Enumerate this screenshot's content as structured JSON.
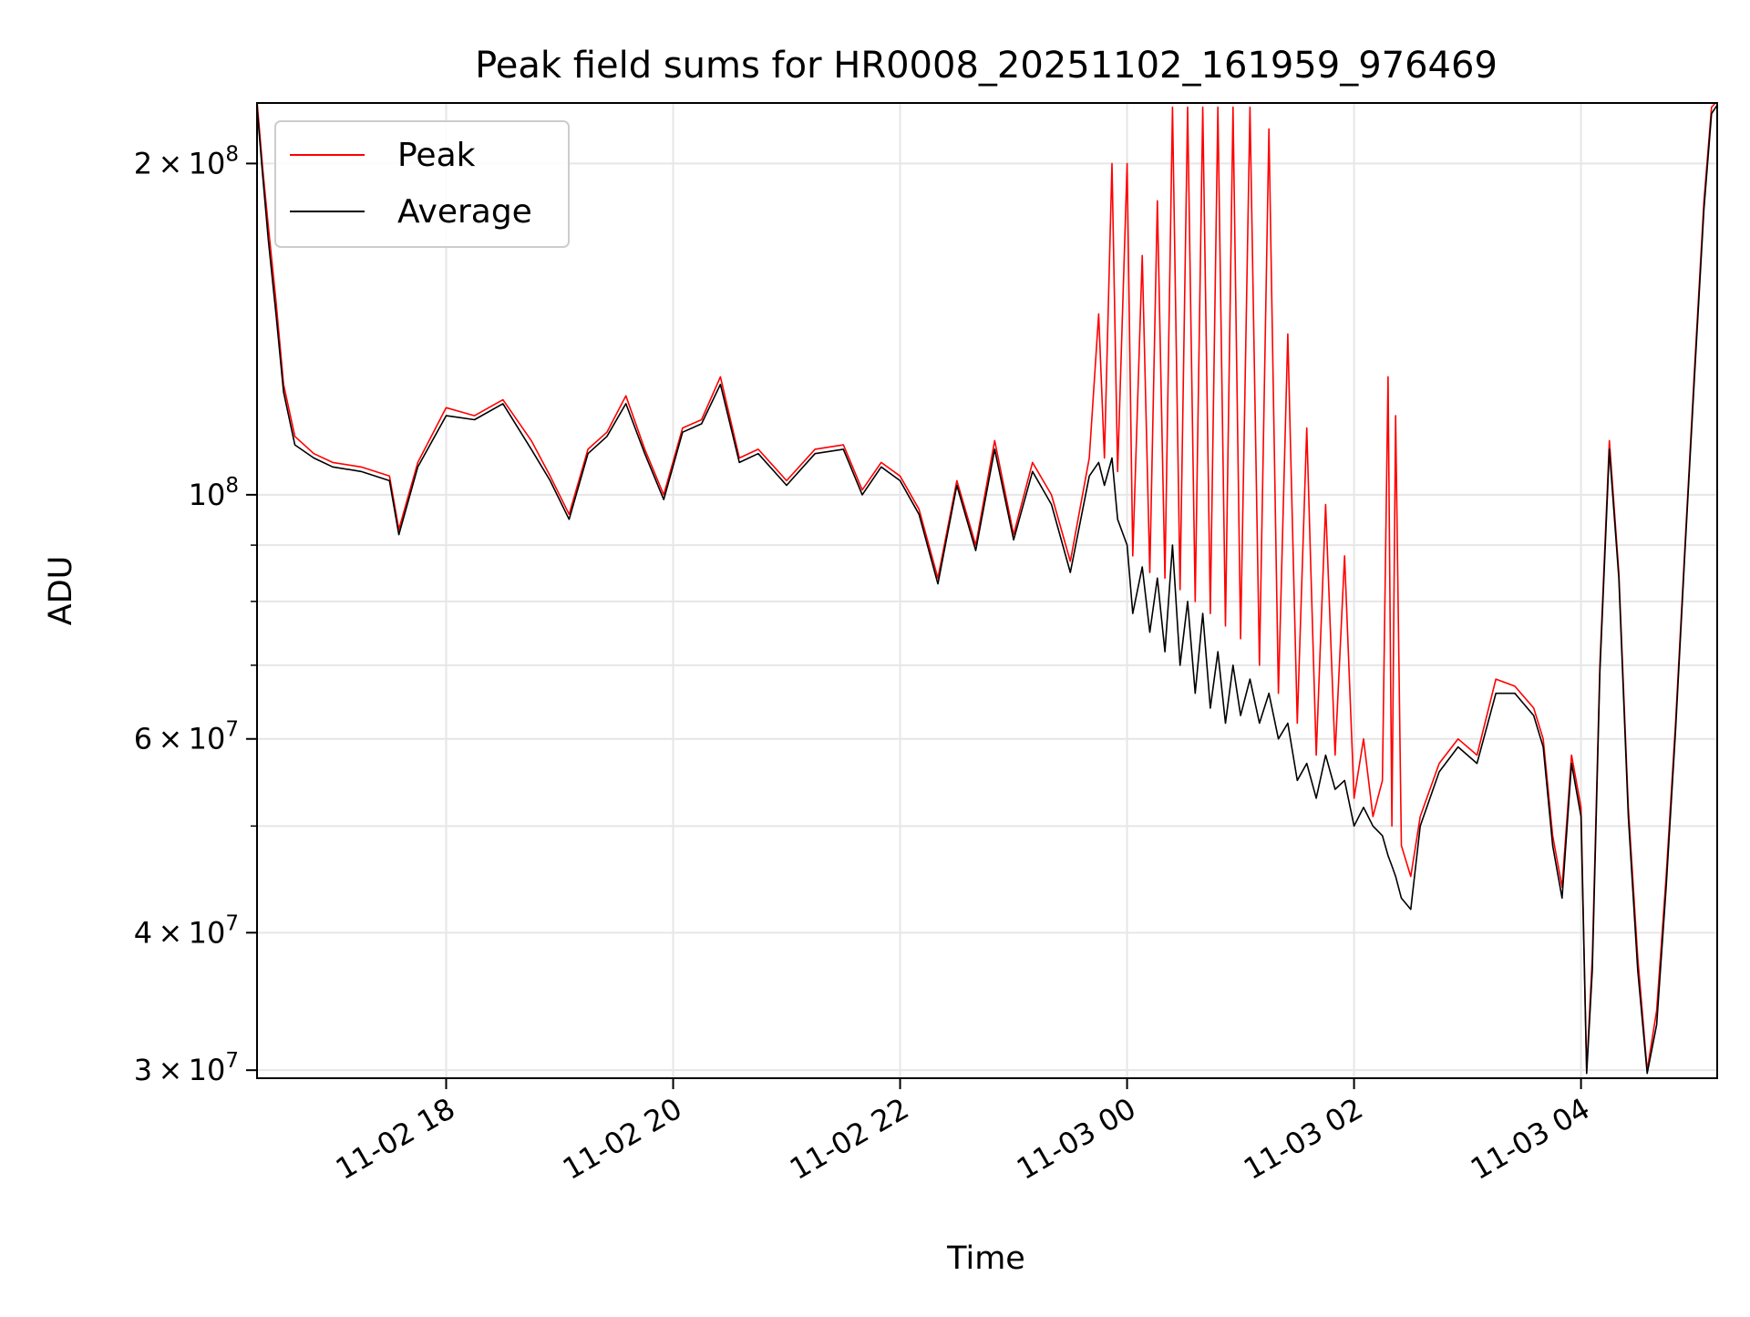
{
  "chart_data": {
    "type": "line",
    "title": "Peak field sums for HR0008_20251102_161959_976469",
    "xlabel": "Time",
    "ylabel": "ADU",
    "y_scale": "log",
    "grid": true,
    "legend_position": "top-left",
    "xlim": [
      "2025-11-02 16:20",
      "2025-11-03 05:12"
    ],
    "ylim": [
      29500000,
      227000000
    ],
    "x_tick_labels": [
      {
        "value": "2025-11-02 18:00",
        "label": "11-02 18"
      },
      {
        "value": "2025-11-02 20:00",
        "label": "11-02 20"
      },
      {
        "value": "2025-11-02 22:00",
        "label": "11-02 22"
      },
      {
        "value": "2025-11-03 00:00",
        "label": "11-03 00"
      },
      {
        "value": "2025-11-03 02:00",
        "label": "11-03 02"
      },
      {
        "value": "2025-11-03 04:00",
        "label": "11-03 04"
      }
    ],
    "y_tick_labels": [
      {
        "value": 30000000,
        "mantissa": "3",
        "exp": "7"
      },
      {
        "value": 40000000,
        "mantissa": "4",
        "exp": "7"
      },
      {
        "value": 60000000,
        "mantissa": "6",
        "exp": "7"
      },
      {
        "value": 100000000,
        "mantissa": "",
        "exp": "8"
      },
      {
        "value": 200000000,
        "mantissa": "2",
        "exp": "8"
      }
    ],
    "y_minor_ticks": [
      50000000,
      70000000,
      80000000,
      90000000
    ],
    "series": [
      {
        "name": "Peak",
        "color": "#ff0000",
        "points": [
          [
            "2025-11-02 16:20",
            228000000
          ],
          [
            "2025-11-02 16:23",
            198000000
          ],
          [
            "2025-11-02 16:26",
            175000000
          ],
          [
            "2025-11-02 16:30",
            150000000
          ],
          [
            "2025-11-02 16:34",
            126000000
          ],
          [
            "2025-11-02 16:40",
            113000000
          ],
          [
            "2025-11-02 16:50",
            109000000
          ],
          [
            "2025-11-02 17:00",
            107000000
          ],
          [
            "2025-11-02 17:15",
            106000000
          ],
          [
            "2025-11-02 17:30",
            104000000
          ],
          [
            "2025-11-02 17:35",
            93000000
          ],
          [
            "2025-11-02 17:45",
            107000000
          ],
          [
            "2025-11-02 18:00",
            120000000
          ],
          [
            "2025-11-02 18:15",
            118000000
          ],
          [
            "2025-11-02 18:30",
            122000000
          ],
          [
            "2025-11-02 18:45",
            112000000
          ],
          [
            "2025-11-02 18:55",
            104000000
          ],
          [
            "2025-11-02 19:05",
            96000000
          ],
          [
            "2025-11-02 19:15",
            110000000
          ],
          [
            "2025-11-02 19:25",
            114000000
          ],
          [
            "2025-11-02 19:35",
            123000000
          ],
          [
            "2025-11-02 19:45",
            110000000
          ],
          [
            "2025-11-02 19:55",
            100000000
          ],
          [
            "2025-11-02 20:05",
            115000000
          ],
          [
            "2025-11-02 20:15",
            117000000
          ],
          [
            "2025-11-02 20:25",
            128000000
          ],
          [
            "2025-11-02 20:35",
            108000000
          ],
          [
            "2025-11-02 20:45",
            110000000
          ],
          [
            "2025-11-02 21:00",
            103000000
          ],
          [
            "2025-11-02 21:15",
            110000000
          ],
          [
            "2025-11-02 21:30",
            111000000
          ],
          [
            "2025-11-02 21:40",
            101000000
          ],
          [
            "2025-11-02 21:50",
            107000000
          ],
          [
            "2025-11-02 22:00",
            104000000
          ],
          [
            "2025-11-02 22:10",
            97000000
          ],
          [
            "2025-11-02 22:20",
            84000000
          ],
          [
            "2025-11-02 22:30",
            103000000
          ],
          [
            "2025-11-02 22:40",
            90000000
          ],
          [
            "2025-11-02 22:50",
            112000000
          ],
          [
            "2025-11-02 23:00",
            92000000
          ],
          [
            "2025-11-02 23:10",
            107000000
          ],
          [
            "2025-11-02 23:20",
            100000000
          ],
          [
            "2025-11-02 23:30",
            87000000
          ],
          [
            "2025-11-02 23:40",
            108000000
          ],
          [
            "2025-11-02 23:45",
            146000000
          ],
          [
            "2025-11-02 23:48",
            108000000
          ],
          [
            "2025-11-02 23:52",
            200000000
          ],
          [
            "2025-11-02 23:55",
            105000000
          ],
          [
            "2025-11-03 00:00",
            200000000
          ],
          [
            "2025-11-03 00:03",
            88000000
          ],
          [
            "2025-11-03 00:08",
            165000000
          ],
          [
            "2025-11-03 00:12",
            85000000
          ],
          [
            "2025-11-03 00:16",
            185000000
          ],
          [
            "2025-11-03 00:20",
            84000000
          ],
          [
            "2025-11-03 00:24",
            225000000
          ],
          [
            "2025-11-03 00:28",
            82000000
          ],
          [
            "2025-11-03 00:32",
            225000000
          ],
          [
            "2025-11-03 00:36",
            80000000
          ],
          [
            "2025-11-03 00:40",
            225000000
          ],
          [
            "2025-11-03 00:44",
            78000000
          ],
          [
            "2025-11-03 00:48",
            225000000
          ],
          [
            "2025-11-03 00:52",
            76000000
          ],
          [
            "2025-11-03 00:56",
            225000000
          ],
          [
            "2025-11-03 01:00",
            74000000
          ],
          [
            "2025-11-03 01:05",
            225000000
          ],
          [
            "2025-11-03 01:10",
            70000000
          ],
          [
            "2025-11-03 01:15",
            215000000
          ],
          [
            "2025-11-03 01:20",
            66000000
          ],
          [
            "2025-11-03 01:25",
            140000000
          ],
          [
            "2025-11-03 01:30",
            62000000
          ],
          [
            "2025-11-03 01:35",
            115000000
          ],
          [
            "2025-11-03 01:40",
            58000000
          ],
          [
            "2025-11-03 01:45",
            98000000
          ],
          [
            "2025-11-03 01:50",
            58000000
          ],
          [
            "2025-11-03 01:55",
            88000000
          ],
          [
            "2025-11-03 02:00",
            53000000
          ],
          [
            "2025-11-03 02:05",
            60000000
          ],
          [
            "2025-11-03 02:10",
            51000000
          ],
          [
            "2025-11-03 02:15",
            55000000
          ],
          [
            "2025-11-03 02:18",
            128000000
          ],
          [
            "2025-11-03 02:20",
            50000000
          ],
          [
            "2025-11-03 02:22",
            118000000
          ],
          [
            "2025-11-03 02:25",
            48000000
          ],
          [
            "2025-11-03 02:30",
            45000000
          ],
          [
            "2025-11-03 02:35",
            51000000
          ],
          [
            "2025-11-03 02:45",
            57000000
          ],
          [
            "2025-11-03 02:55",
            60000000
          ],
          [
            "2025-11-03 03:05",
            58000000
          ],
          [
            "2025-11-03 03:15",
            68000000
          ],
          [
            "2025-11-03 03:25",
            67000000
          ],
          [
            "2025-11-03 03:35",
            64000000
          ],
          [
            "2025-11-03 03:40",
            60000000
          ],
          [
            "2025-11-03 03:45",
            49000000
          ],
          [
            "2025-11-03 03:50",
            44000000
          ],
          [
            "2025-11-03 03:55",
            58000000
          ],
          [
            "2025-11-03 04:00",
            52000000
          ],
          [
            "2025-11-03 04:03",
            30000000
          ],
          [
            "2025-11-03 04:06",
            38000000
          ],
          [
            "2025-11-03 04:10",
            70000000
          ],
          [
            "2025-11-03 04:15",
            112000000
          ],
          [
            "2025-11-03 04:20",
            85000000
          ],
          [
            "2025-11-03 04:25",
            52000000
          ],
          [
            "2025-11-03 04:30",
            38000000
          ],
          [
            "2025-11-03 04:35",
            30000000
          ],
          [
            "2025-11-03 04:40",
            34000000
          ],
          [
            "2025-11-03 04:45",
            45000000
          ],
          [
            "2025-11-03 04:50",
            62000000
          ],
          [
            "2025-11-03 04:55",
            90000000
          ],
          [
            "2025-11-03 05:00",
            130000000
          ],
          [
            "2025-11-03 05:05",
            185000000
          ],
          [
            "2025-11-03 05:09",
            225000000
          ],
          [
            "2025-11-03 05:12",
            228000000
          ]
        ]
      },
      {
        "name": "Average",
        "color": "#000000",
        "points": [
          [
            "2025-11-02 16:20",
            225000000
          ],
          [
            "2025-11-02 16:23",
            195000000
          ],
          [
            "2025-11-02 16:26",
            170000000
          ],
          [
            "2025-11-02 16:30",
            146000000
          ],
          [
            "2025-11-02 16:34",
            124000000
          ],
          [
            "2025-11-02 16:40",
            111000000
          ],
          [
            "2025-11-02 16:50",
            108000000
          ],
          [
            "2025-11-02 17:00",
            106000000
          ],
          [
            "2025-11-02 17:15",
            105000000
          ],
          [
            "2025-11-02 17:30",
            103000000
          ],
          [
            "2025-11-02 17:35",
            92000000
          ],
          [
            "2025-11-02 17:45",
            106000000
          ],
          [
            "2025-11-02 18:00",
            118000000
          ],
          [
            "2025-11-02 18:15",
            117000000
          ],
          [
            "2025-11-02 18:30",
            121000000
          ],
          [
            "2025-11-02 18:45",
            110000000
          ],
          [
            "2025-11-02 18:55",
            103000000
          ],
          [
            "2025-11-02 19:05",
            95000000
          ],
          [
            "2025-11-02 19:15",
            109000000
          ],
          [
            "2025-11-02 19:25",
            113000000
          ],
          [
            "2025-11-02 19:35",
            121000000
          ],
          [
            "2025-11-02 19:45",
            109000000
          ],
          [
            "2025-11-02 19:55",
            99000000
          ],
          [
            "2025-11-02 20:05",
            114000000
          ],
          [
            "2025-11-02 20:15",
            116000000
          ],
          [
            "2025-11-02 20:25",
            126000000
          ],
          [
            "2025-11-02 20:35",
            107000000
          ],
          [
            "2025-11-02 20:45",
            109000000
          ],
          [
            "2025-11-02 21:00",
            102000000
          ],
          [
            "2025-11-02 21:15",
            109000000
          ],
          [
            "2025-11-02 21:30",
            110000000
          ],
          [
            "2025-11-02 21:40",
            100000000
          ],
          [
            "2025-11-02 21:50",
            106000000
          ],
          [
            "2025-11-02 22:00",
            103000000
          ],
          [
            "2025-11-02 22:10",
            96000000
          ],
          [
            "2025-11-02 22:20",
            83000000
          ],
          [
            "2025-11-02 22:30",
            102000000
          ],
          [
            "2025-11-02 22:40",
            89000000
          ],
          [
            "2025-11-02 22:50",
            110000000
          ],
          [
            "2025-11-02 23:00",
            91000000
          ],
          [
            "2025-11-02 23:10",
            105000000
          ],
          [
            "2025-11-02 23:20",
            98000000
          ],
          [
            "2025-11-02 23:30",
            85000000
          ],
          [
            "2025-11-02 23:40",
            104000000
          ],
          [
            "2025-11-02 23:45",
            107000000
          ],
          [
            "2025-11-02 23:48",
            102000000
          ],
          [
            "2025-11-02 23:52",
            108000000
          ],
          [
            "2025-11-02 23:55",
            95000000
          ],
          [
            "2025-11-03 00:00",
            90000000
          ],
          [
            "2025-11-03 00:03",
            78000000
          ],
          [
            "2025-11-03 00:08",
            86000000
          ],
          [
            "2025-11-03 00:12",
            75000000
          ],
          [
            "2025-11-03 00:16",
            84000000
          ],
          [
            "2025-11-03 00:20",
            72000000
          ],
          [
            "2025-11-03 00:24",
            90000000
          ],
          [
            "2025-11-03 00:28",
            70000000
          ],
          [
            "2025-11-03 00:32",
            80000000
          ],
          [
            "2025-11-03 00:36",
            66000000
          ],
          [
            "2025-11-03 00:40",
            78000000
          ],
          [
            "2025-11-03 00:44",
            64000000
          ],
          [
            "2025-11-03 00:48",
            72000000
          ],
          [
            "2025-11-03 00:52",
            62000000
          ],
          [
            "2025-11-03 00:56",
            70000000
          ],
          [
            "2025-11-03 01:00",
            63000000
          ],
          [
            "2025-11-03 01:05",
            68000000
          ],
          [
            "2025-11-03 01:10",
            62000000
          ],
          [
            "2025-11-03 01:15",
            66000000
          ],
          [
            "2025-11-03 01:20",
            60000000
          ],
          [
            "2025-11-03 01:25",
            62000000
          ],
          [
            "2025-11-03 01:30",
            55000000
          ],
          [
            "2025-11-03 01:35",
            57000000
          ],
          [
            "2025-11-03 01:40",
            53000000
          ],
          [
            "2025-11-03 01:45",
            58000000
          ],
          [
            "2025-11-03 01:50",
            54000000
          ],
          [
            "2025-11-03 01:55",
            55000000
          ],
          [
            "2025-11-03 02:00",
            50000000
          ],
          [
            "2025-11-03 02:05",
            52000000
          ],
          [
            "2025-11-03 02:10",
            50000000
          ],
          [
            "2025-11-03 02:15",
            49000000
          ],
          [
            "2025-11-03 02:18",
            47000000
          ],
          [
            "2025-11-03 02:20",
            46000000
          ],
          [
            "2025-11-03 02:22",
            45000000
          ],
          [
            "2025-11-03 02:25",
            43000000
          ],
          [
            "2025-11-03 02:30",
            42000000
          ],
          [
            "2025-11-03 02:35",
            50000000
          ],
          [
            "2025-11-03 02:45",
            56000000
          ],
          [
            "2025-11-03 02:55",
            59000000
          ],
          [
            "2025-11-03 03:05",
            57000000
          ],
          [
            "2025-11-03 03:15",
            66000000
          ],
          [
            "2025-11-03 03:25",
            66000000
          ],
          [
            "2025-11-03 03:35",
            63000000
          ],
          [
            "2025-11-03 03:40",
            59000000
          ],
          [
            "2025-11-03 03:45",
            48000000
          ],
          [
            "2025-11-03 03:50",
            43000000
          ],
          [
            "2025-11-03 03:55",
            57000000
          ],
          [
            "2025-11-03 04:00",
            51000000
          ],
          [
            "2025-11-03 04:03",
            29800000
          ],
          [
            "2025-11-03 04:06",
            37000000
          ],
          [
            "2025-11-03 04:10",
            69000000
          ],
          [
            "2025-11-03 04:15",
            110000000
          ],
          [
            "2025-11-03 04:20",
            84000000
          ],
          [
            "2025-11-03 04:25",
            51000000
          ],
          [
            "2025-11-03 04:30",
            37000000
          ],
          [
            "2025-11-03 04:35",
            29800000
          ],
          [
            "2025-11-03 04:40",
            33000000
          ],
          [
            "2025-11-03 04:45",
            44000000
          ],
          [
            "2025-11-03 04:50",
            61000000
          ],
          [
            "2025-11-03 04:55",
            89000000
          ],
          [
            "2025-11-03 05:00",
            128000000
          ],
          [
            "2025-11-03 05:05",
            182000000
          ],
          [
            "2025-11-03 05:09",
            222000000
          ],
          [
            "2025-11-03 05:12",
            226000000
          ]
        ]
      }
    ]
  }
}
